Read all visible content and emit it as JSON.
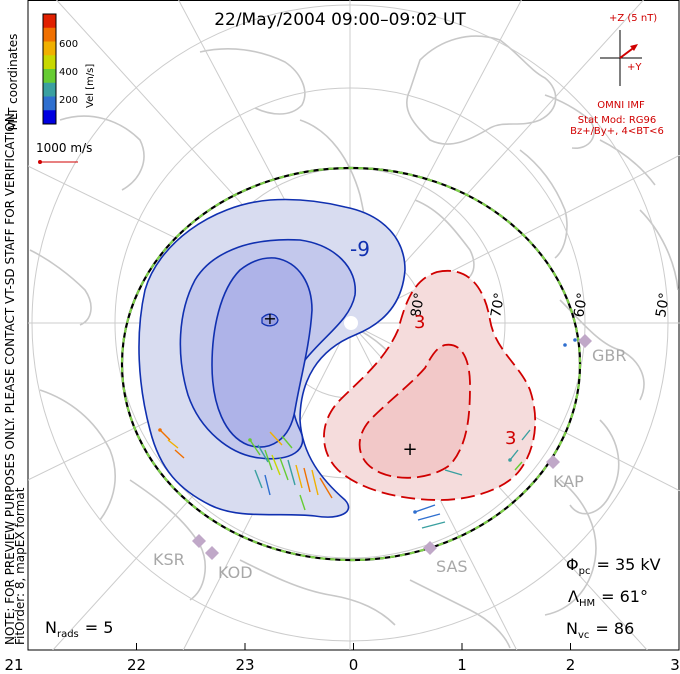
{
  "title": "22/May/2004 09:00–09:02 UT",
  "colorbar": {
    "label": "Vel [m/s]",
    "ticks": [
      "600",
      "400",
      "200"
    ],
    "colors": [
      "#0000e0",
      "#2f6fcf",
      "#3aa0a0",
      "#66cc33",
      "#c8d800",
      "#f0b000",
      "#f07000",
      "#e02000"
    ]
  },
  "coords_label": "MLT coordinates",
  "velocity_ref": {
    "label": "1000 m/s"
  },
  "side_note": "NOTE: FOR PREVIEW PURPOSES ONLY. PLEASE CONTACT VT-SD STAFF FOR VERIFICATION.",
  "side_note2": "FitOrder: 8, mapEX format",
  "imf": {
    "z_label": "+Z (5 nT)",
    "y_label": "+Y",
    "source": "OMNI IMF",
    "model": "Stat Mod: RG96",
    "condition": "Bz+/By+, 4<BT<6"
  },
  "latitudes": [
    "80°",
    "70°",
    "60°",
    "50°"
  ],
  "contour_labels": [
    "-9",
    "3",
    "3"
  ],
  "radars": [
    "GBR",
    "KAP",
    "SAS",
    "KOD",
    "KSR"
  ],
  "stats": {
    "phi_sym": "Φ",
    "phi_sub": "pc",
    "phi_val": "= 35 kV",
    "lam_sym": "Λ",
    "lam_sub": "HM",
    "lam_val": "= 61°",
    "nvc_sym": "N",
    "nvc_sub": "vc",
    "nvc_val": "= 86",
    "nrads_sym": "N",
    "nrads_sub": "rads",
    "nrads_val": "= 5"
  },
  "mlt_ticks": [
    "21",
    "22",
    "23",
    "0",
    "1",
    "2",
    "3"
  ]
}
